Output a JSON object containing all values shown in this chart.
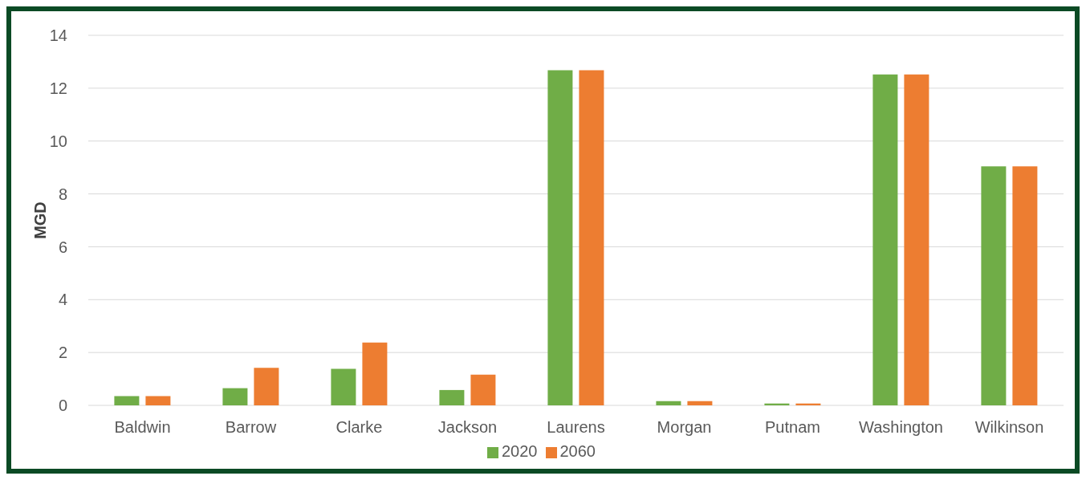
{
  "chart_data": {
    "type": "bar",
    "ylabel": "MGD",
    "categories": [
      "Baldwin",
      "Barrow",
      "Clarke",
      "Jackson",
      "Laurens",
      "Morgan",
      "Putnam",
      "Washington",
      "Wilkinson"
    ],
    "series": [
      {
        "name": "2020",
        "color": "#70ad47",
        "values": [
          0.35,
          0.65,
          1.38,
          0.58,
          12.68,
          0.16,
          0.07,
          12.52,
          9.04
        ]
      },
      {
        "name": "2060",
        "color": "#ed7d31",
        "values": [
          0.35,
          1.42,
          2.38,
          1.16,
          12.68,
          0.16,
          0.07,
          12.52,
          9.04
        ]
      }
    ],
    "ylim": [
      0,
      14
    ],
    "yticks": [
      0,
      2,
      4,
      6,
      8,
      10,
      12,
      14
    ],
    "grid": "y",
    "legend": "bottom"
  }
}
